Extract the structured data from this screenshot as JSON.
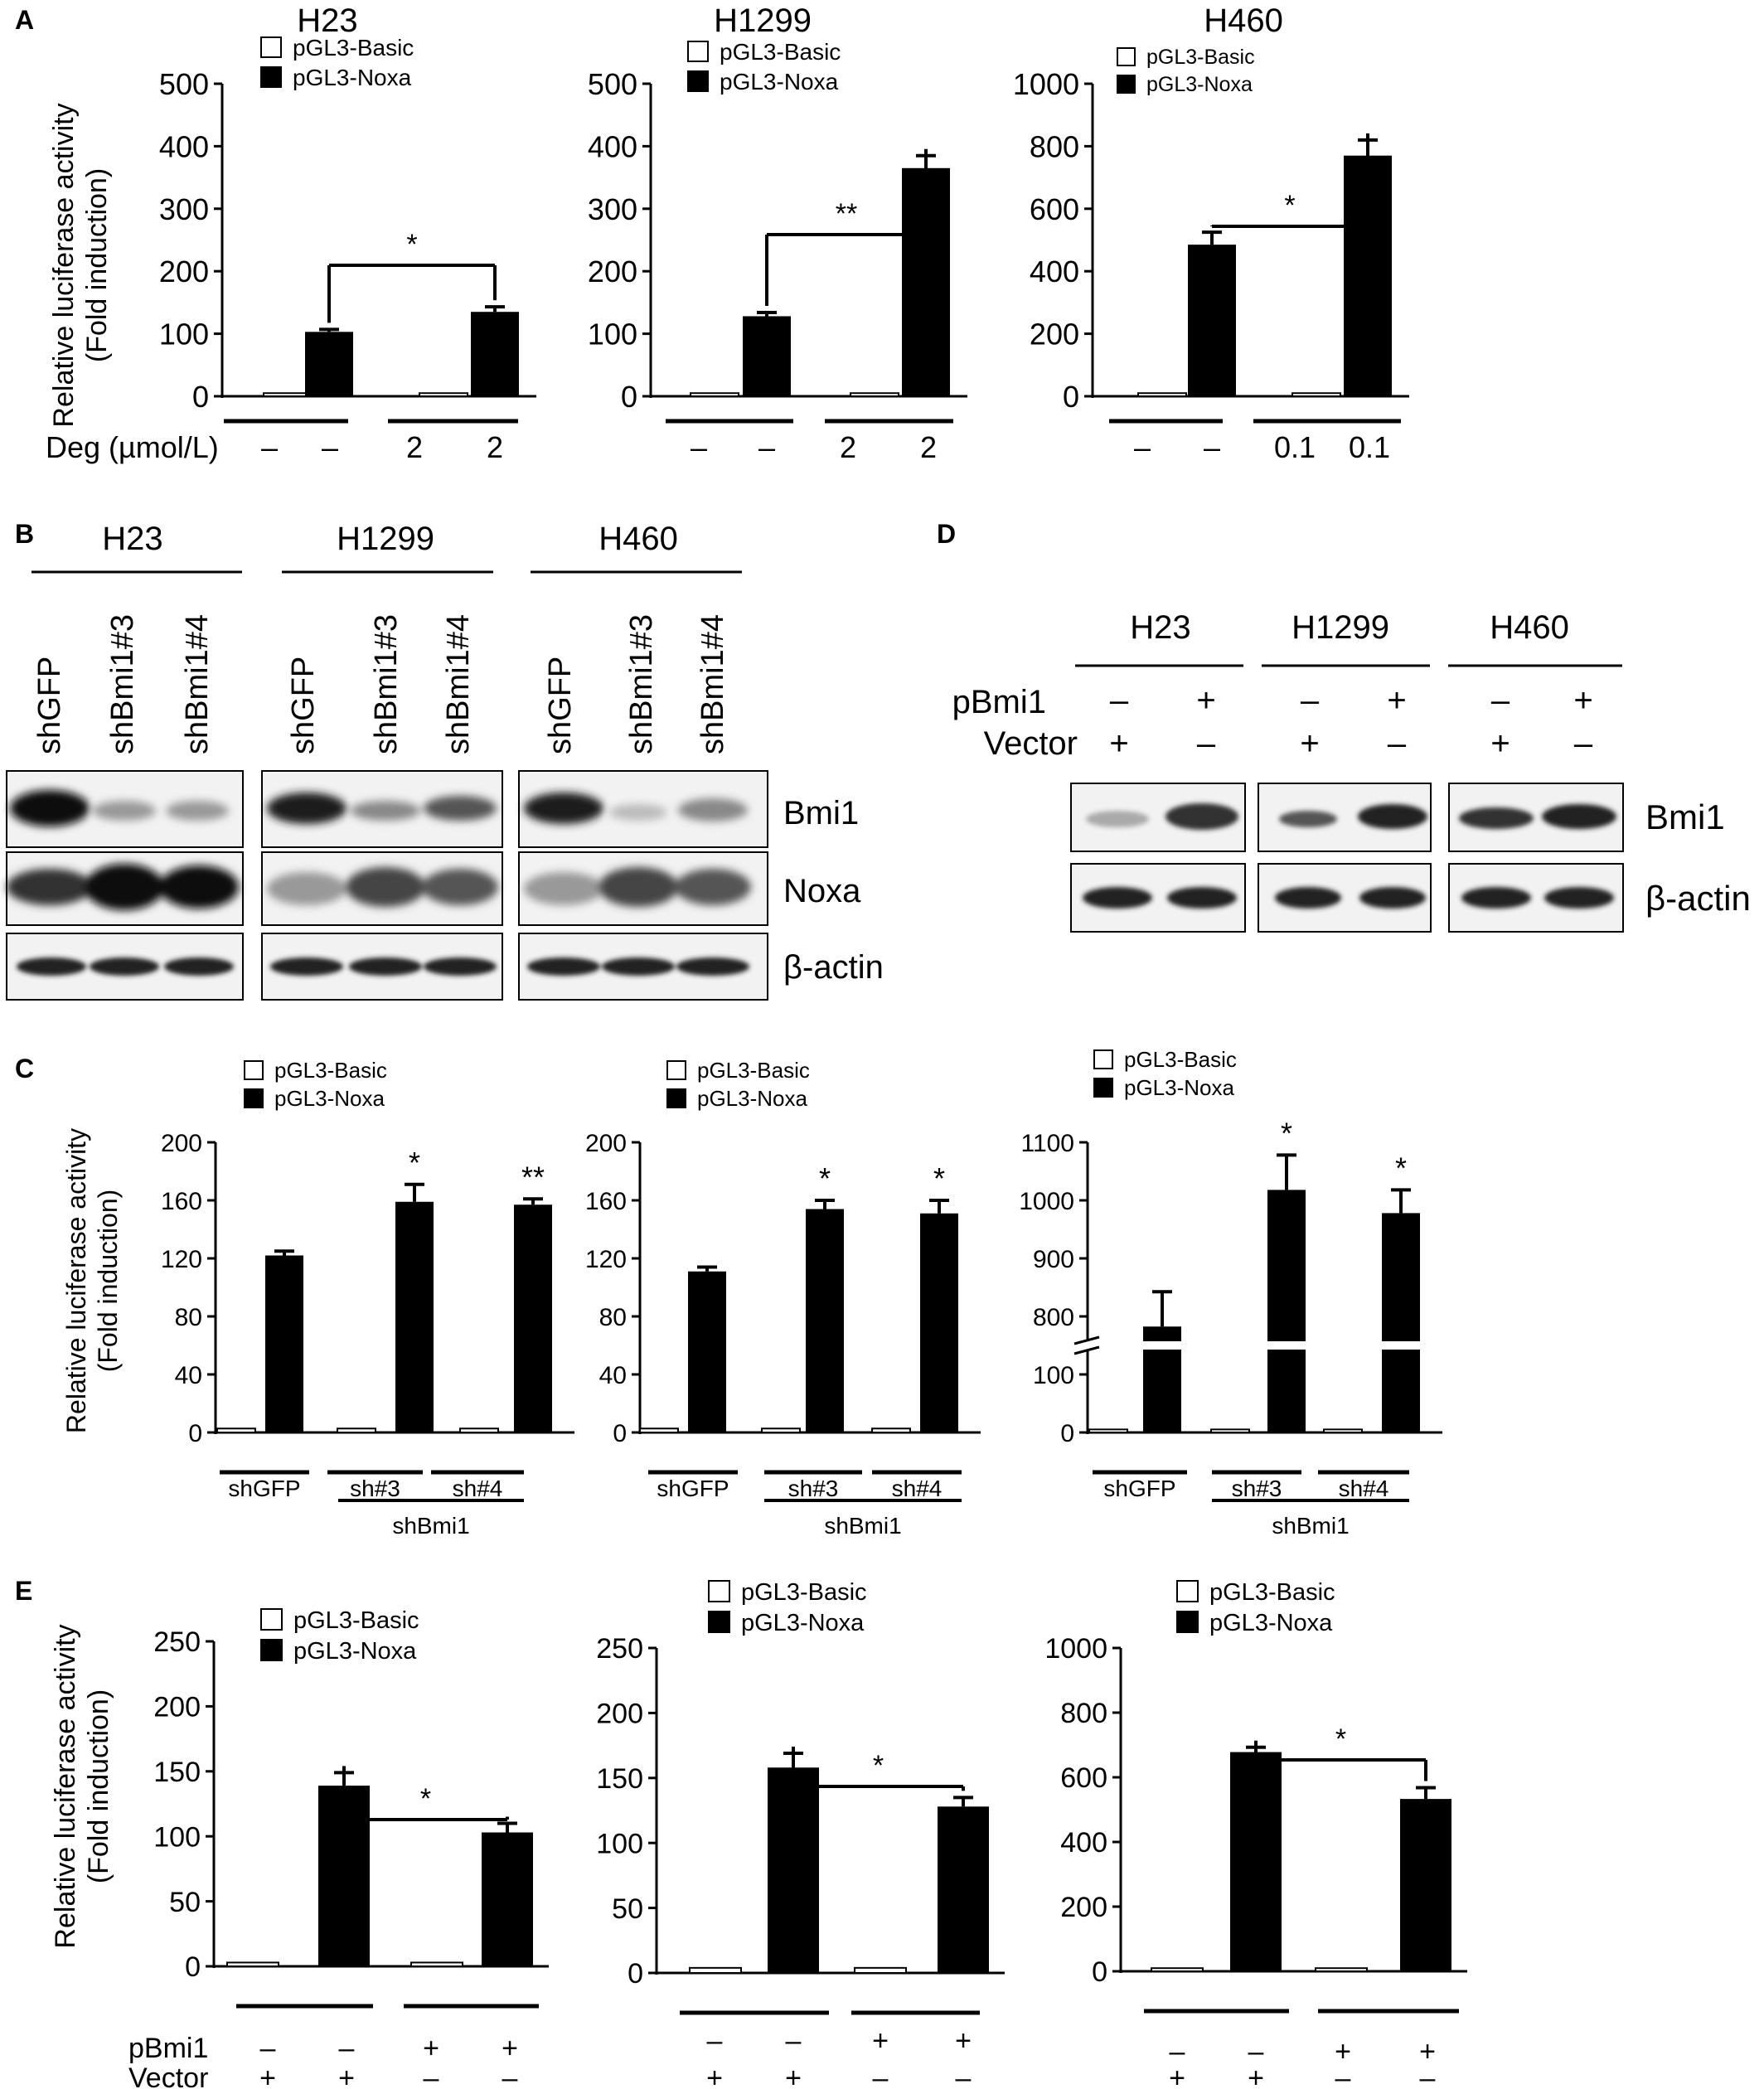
{
  "panel_labels": [
    "A",
    "B",
    "C",
    "D",
    "E"
  ],
  "legend": {
    "basic": "pGL3-Basic",
    "noxa": "pGL3-Noxa"
  },
  "ylabel_line1": "Relative luciferase activity",
  "ylabel_line2": "(Fold induction)",
  "chart_data": [
    {
      "id": "A1",
      "type": "bar",
      "title": "H23",
      "ylim": [
        0,
        500
      ],
      "yticks": [
        "0",
        "100",
        "200",
        "300",
        "400",
        "500"
      ],
      "series": [
        {
          "name": "pGL3-Basic",
          "color": "#ffffff",
          "values": [
            1,
            1
          ],
          "err": [
            0,
            0
          ]
        },
        {
          "name": "pGL3-Noxa",
          "color": "#000000",
          "values": [
            103,
            135
          ],
          "err": [
            4,
            8
          ]
        }
      ],
      "sig": "*",
      "row_label": "Deg (µmol/L)",
      "conditions": [
        "–",
        "–",
        "2",
        "2"
      ]
    },
    {
      "id": "A2",
      "type": "bar",
      "title": "H1299",
      "ylim": [
        0,
        500
      ],
      "yticks": [
        "0",
        "100",
        "200",
        "300",
        "400",
        "500"
      ],
      "series": [
        {
          "name": "pGL3-Basic",
          "color": "#ffffff",
          "values": [
            1,
            1
          ],
          "err": [
            0,
            0
          ]
        },
        {
          "name": "pGL3-Noxa",
          "color": "#000000",
          "values": [
            128,
            365
          ],
          "err": [
            6,
            20
          ]
        }
      ],
      "sig": "**",
      "conditions": [
        "–",
        "–",
        "2",
        "2"
      ]
    },
    {
      "id": "A3",
      "type": "bar",
      "title": "H460",
      "ylim": [
        0,
        1000
      ],
      "yticks": [
        "0",
        "200",
        "400",
        "600",
        "800",
        "1000"
      ],
      "series": [
        {
          "name": "pGL3-Basic",
          "color": "#ffffff",
          "values": [
            2,
            2
          ],
          "err": [
            0,
            0
          ]
        },
        {
          "name": "pGL3-Noxa",
          "color": "#000000",
          "values": [
            485,
            770
          ],
          "err": [
            40,
            50
          ]
        }
      ],
      "sig": "*",
      "conditions": [
        "–",
        "–",
        "0.1",
        "0.1"
      ]
    },
    {
      "id": "C1",
      "type": "bar",
      "ylim": [
        0,
        200
      ],
      "yticks": [
        "0",
        "40",
        "80",
        "120",
        "160",
        "200"
      ],
      "categories": [
        "shGFP",
        "sh#3",
        "sh#4"
      ],
      "group_label": "shBmi1",
      "series": [
        {
          "name": "pGL3-Basic",
          "color": "#ffffff",
          "values": [
            1,
            1,
            1
          ],
          "err": [
            0,
            0,
            0
          ]
        },
        {
          "name": "pGL3-Noxa",
          "color": "#000000",
          "values": [
            122,
            159,
            157
          ],
          "err": [
            3,
            12,
            4
          ]
        }
      ],
      "stars": [
        "",
        "*",
        "**"
      ]
    },
    {
      "id": "C2",
      "type": "bar",
      "ylim": [
        0,
        200
      ],
      "yticks": [
        "0",
        "40",
        "80",
        "120",
        "160",
        "200"
      ],
      "categories": [
        "shGFP",
        "sh#3",
        "sh#4"
      ],
      "group_label": "shBmi1",
      "series": [
        {
          "name": "pGL3-Basic",
          "color": "#ffffff",
          "values": [
            1,
            1,
            1
          ],
          "err": [
            0,
            0,
            0
          ]
        },
        {
          "name": "pGL3-Noxa",
          "color": "#000000",
          "values": [
            111,
            154,
            151
          ],
          "err": [
            3,
            6,
            9
          ]
        }
      ],
      "stars": [
        "",
        "*",
        "*"
      ]
    },
    {
      "id": "C3",
      "type": "bar",
      "axis_break": true,
      "ylim": [
        0,
        1100
      ],
      "yticks": [
        "0",
        "100",
        "800",
        "900",
        "1000",
        "1100"
      ],
      "categories": [
        "shGFP",
        "sh#3",
        "sh#4"
      ],
      "group_label": "shBmi1",
      "series": [
        {
          "name": "pGL3-Basic",
          "color": "#ffffff",
          "values": [
            2,
            2,
            2
          ],
          "err": [
            0,
            0,
            0
          ]
        },
        {
          "name": "pGL3-Noxa",
          "color": "#000000",
          "values": [
            765,
            1018,
            978
          ],
          "err": [
            60,
            60,
            40
          ]
        }
      ],
      "stars": [
        "",
        "*",
        "*"
      ]
    },
    {
      "id": "E1",
      "type": "bar",
      "ylim": [
        0,
        250
      ],
      "yticks": [
        "0",
        "50",
        "100",
        "150",
        "200",
        "250"
      ],
      "series": [
        {
          "name": "pGL3-Basic",
          "color": "#ffffff",
          "values": [
            1,
            1
          ],
          "err": [
            0,
            0
          ]
        },
        {
          "name": "pGL3-Noxa",
          "color": "#000000",
          "values": [
            139,
            103
          ],
          "err": [
            10,
            7
          ]
        }
      ],
      "sig": "*",
      "row1_label": "pBmi1",
      "row1": [
        "–",
        "–",
        "+",
        "+"
      ],
      "row2_label": "Vector",
      "row2": [
        "+",
        "+",
        "–",
        "–"
      ]
    },
    {
      "id": "E2",
      "type": "bar",
      "ylim": [
        0,
        250
      ],
      "yticks": [
        "0",
        "50",
        "100",
        "150",
        "200",
        "250"
      ],
      "series": [
        {
          "name": "pGL3-Basic",
          "color": "#ffffff",
          "values": [
            2,
            2
          ],
          "err": [
            0,
            0
          ]
        },
        {
          "name": "pGL3-Noxa",
          "color": "#000000",
          "values": [
            158,
            128
          ],
          "err": [
            11,
            7
          ]
        }
      ],
      "sig": "*",
      "row1": [
        "–",
        "–",
        "+",
        "+"
      ],
      "row2": [
        "+",
        "+",
        "–",
        "–"
      ]
    },
    {
      "id": "E3",
      "type": "bar",
      "ylim": [
        0,
        1000
      ],
      "yticks": [
        "0",
        "200",
        "400",
        "600",
        "800",
        "1000"
      ],
      "series": [
        {
          "name": "pGL3-Basic",
          "color": "#ffffff",
          "values": [
            2,
            2
          ],
          "err": [
            0,
            0
          ]
        },
        {
          "name": "pGL3-Noxa",
          "color": "#000000",
          "values": [
            678,
            533
          ],
          "err": [
            15,
            35
          ]
        }
      ],
      "sig": "*",
      "row1": [
        "–",
        "–",
        "+",
        "+"
      ],
      "row2": [
        "+",
        "+",
        "–",
        "–"
      ]
    }
  ],
  "panel_b": {
    "cell_lines": [
      "H23",
      "H1299",
      "H460"
    ],
    "lanes": [
      "shGFP",
      "shBmi1#3",
      "shBmi1#4"
    ],
    "rows": [
      "Bmi1",
      "Noxa",
      "β-actin"
    ]
  },
  "panel_d": {
    "cell_lines": [
      "H23",
      "H1299",
      "H460"
    ],
    "pbmi1_label": "pBmi1",
    "vector_label": "Vector",
    "pbmi1": [
      "–",
      "+"
    ],
    "vector": [
      "+",
      "–"
    ],
    "rows": [
      "Bmi1",
      "β-actin"
    ]
  }
}
